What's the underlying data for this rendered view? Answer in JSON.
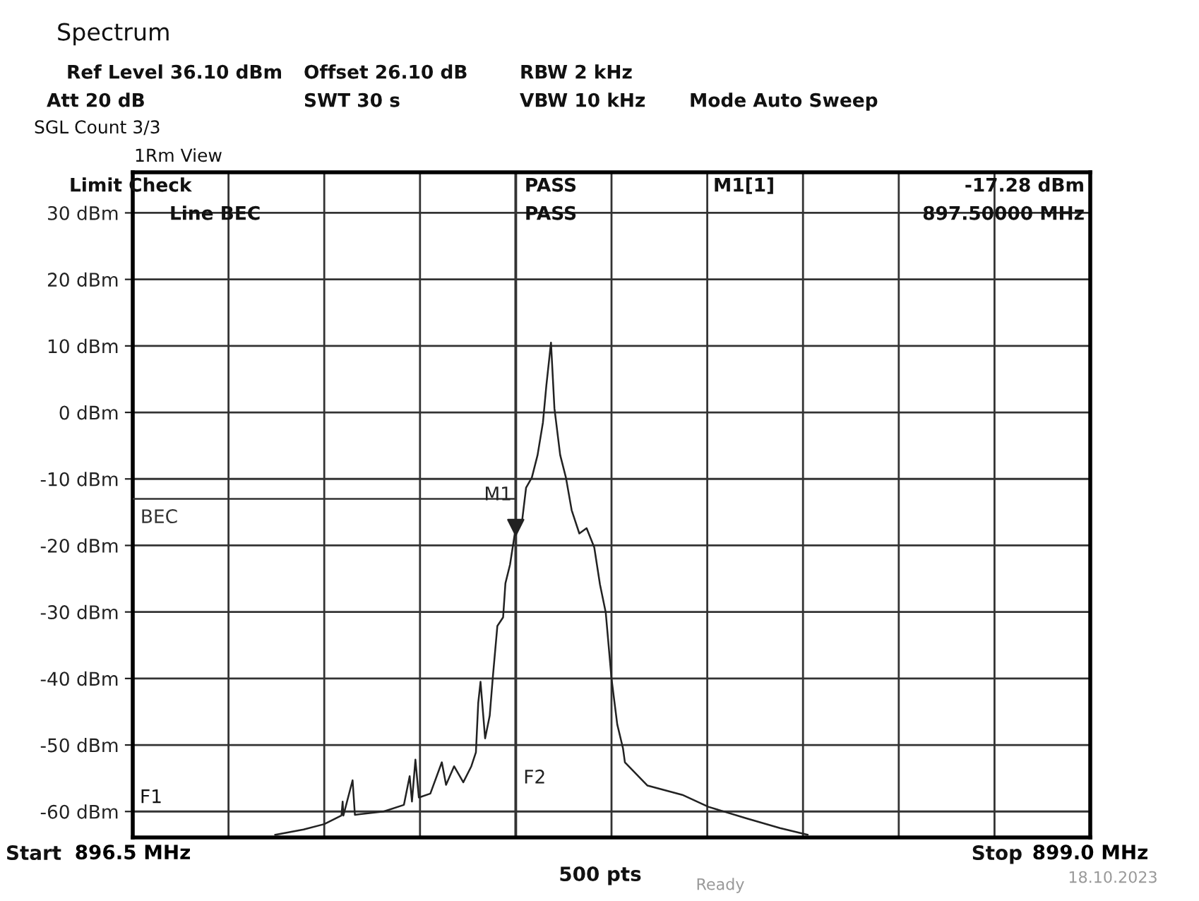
{
  "chart_data": {
    "type": "line",
    "xlim": [
      896.5,
      899.0
    ],
    "xticks": [
      {
        "value": 896.5,
        "label": "896.5 MHz"
      },
      {
        "value": 896.75,
        "label": null
      },
      {
        "value": 897.0,
        "label": null
      },
      {
        "value": 897.25,
        "label": null
      },
      {
        "value": 897.5,
        "label": null
      },
      {
        "value": 897.75,
        "label": null
      },
      {
        "value": 898.0,
        "label": null
      },
      {
        "value": 898.25,
        "label": null
      },
      {
        "value": 898.5,
        "label": null
      },
      {
        "value": 898.75,
        "label": null
      },
      {
        "value": 899.0,
        "label": "899.0 MHz"
      }
    ],
    "ylim": [
      -63.9,
      36.1
    ],
    "yticks": [
      {
        "value": 30,
        "label": "30 dBm"
      },
      {
        "value": 20,
        "label": "20 dBm"
      },
      {
        "value": 10,
        "label": "10 dBm"
      },
      {
        "value": 0,
        "label": "0 dBm"
      },
      {
        "value": -10,
        "label": "-10 dBm"
      },
      {
        "value": -20,
        "label": "-20 dBm"
      },
      {
        "value": -30,
        "label": "-30 dBm"
      },
      {
        "value": -40,
        "label": "-40 dBm"
      },
      {
        "value": -50,
        "label": "-50 dBm"
      },
      {
        "value": -60,
        "label": "-60 dBm"
      }
    ],
    "grid": true,
    "line_style": "solid",
    "series": [
      {
        "color": "#222222",
        "x": [
          896.872,
          896.946,
          897.0,
          897.045,
          897.048,
          897.05,
          897.074,
          897.08,
          897.155,
          897.208,
          897.223,
          897.229,
          897.238,
          897.247,
          897.277,
          897.307,
          897.318,
          897.339,
          897.363,
          897.384,
          897.396,
          897.402,
          897.408,
          897.42,
          897.432,
          897.44,
          897.452,
          897.467,
          897.473,
          897.485,
          897.5,
          897.517,
          897.527,
          897.542,
          897.557,
          897.571,
          897.58,
          897.592,
          897.601,
          897.616,
          897.631,
          897.646,
          897.666,
          897.685,
          897.705,
          897.72,
          897.735,
          897.75,
          897.765,
          897.78,
          897.785,
          897.844,
          897.935,
          898.003,
          898.101,
          898.19,
          898.262
        ],
        "values": [
          -63.5,
          -62.7,
          -61.9,
          -60.6,
          -58.5,
          -60.6,
          -55.3,
          -60.5,
          -60.0,
          -59.0,
          -54.7,
          -58.5,
          -52.2,
          -57.9,
          -57.3,
          -52.6,
          -56.0,
          -53.2,
          -55.6,
          -53.2,
          -51.1,
          -43.7,
          -40.5,
          -49.0,
          -45.6,
          -39.9,
          -32.1,
          -30.8,
          -25.7,
          -22.9,
          -17.28,
          -16.1,
          -11.3,
          -9.8,
          -6.4,
          -1.5,
          4.1,
          10.5,
          0.6,
          -6.4,
          -9.8,
          -14.7,
          -18.2,
          -17.4,
          -20.3,
          -25.9,
          -30.1,
          -40.0,
          -46.9,
          -50.5,
          -52.6,
          -56.1,
          -57.5,
          -59.3,
          -61.0,
          -62.5,
          -63.5
        ]
      },
      {
        "name": "BEC",
        "color": "#333333",
        "x": [
          896.5,
          897.5
        ],
        "values": [
          -13,
          -13
        ]
      },
      {
        "name": "M1",
        "type": "scatter",
        "marker": "triangle",
        "color": "#222222",
        "x": [
          897.5
        ],
        "values": [
          -17.28
        ]
      }
    ],
    "ref_lines": [
      {
        "axis": "x",
        "value": 897.5,
        "label": "F2",
        "color": "#333333"
      }
    ],
    "annotations": [
      "Spectrum",
      "Ref Level 36.10 dBm",
      "Offset 26.10 dB",
      "RBW 2 kHz",
      "Att 20 dB",
      "SWT 30 s",
      "VBW 10 kHz",
      "Mode Auto Sweep",
      "SGL Count 3/3",
      "1Rm View",
      "Limit Check",
      "PASS",
      "Line BEC",
      "PASS",
      "M1[1]",
      "-17.28 dBm",
      "897.50000 MHz",
      "Start",
      "Stop",
      "500 pts",
      "Ready",
      "18.10.2023",
      "F1"
    ]
  }
}
